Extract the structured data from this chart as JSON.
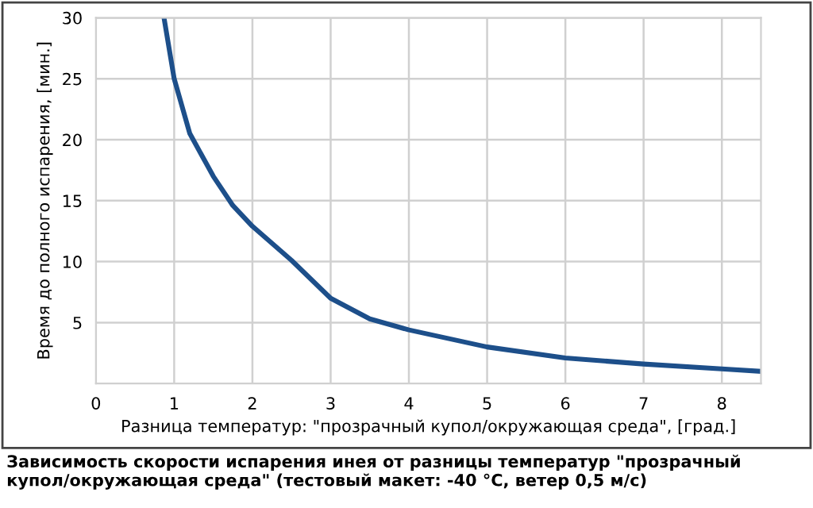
{
  "chart_data": {
    "type": "line",
    "xlabel": "Разница температур: \"прозрачный купол/окружающая среда\", [град.]",
    "ylabel": "Время до полного испарения, [мин.]",
    "annotations": [
      "Зависимость скорости испарения инея от разницы температур \"прозрачный купол/окружающая среда\" (тестовый макет: -40 °C, ветер 0,5 м/с)"
    ],
    "x": [
      0.87,
      1,
      1.2,
      1.5,
      1.75,
      2,
      2.5,
      3,
      3.5,
      4,
      5,
      6,
      7,
      8,
      8.5
    ],
    "series": [
      {
        "color": "#1d4f8a",
        "values": [
          30,
          25,
          20.5,
          17,
          14.6,
          12.9,
          10.1,
          7.0,
          5.3,
          4.4,
          3.0,
          2.1,
          1.6,
          1.2,
          1.0
        ]
      }
    ],
    "xlim": [
      0,
      8.5
    ],
    "ylim": [
      0,
      30
    ],
    "xticks": [
      0,
      1,
      2,
      3,
      4,
      5,
      6,
      7,
      8
    ],
    "yticks": [
      {
        "value": 0,
        "label": null
      },
      5,
      10,
      15,
      20,
      25,
      30
    ],
    "grid": true,
    "legend": false,
    "marker": "none",
    "line_style": "solid"
  }
}
